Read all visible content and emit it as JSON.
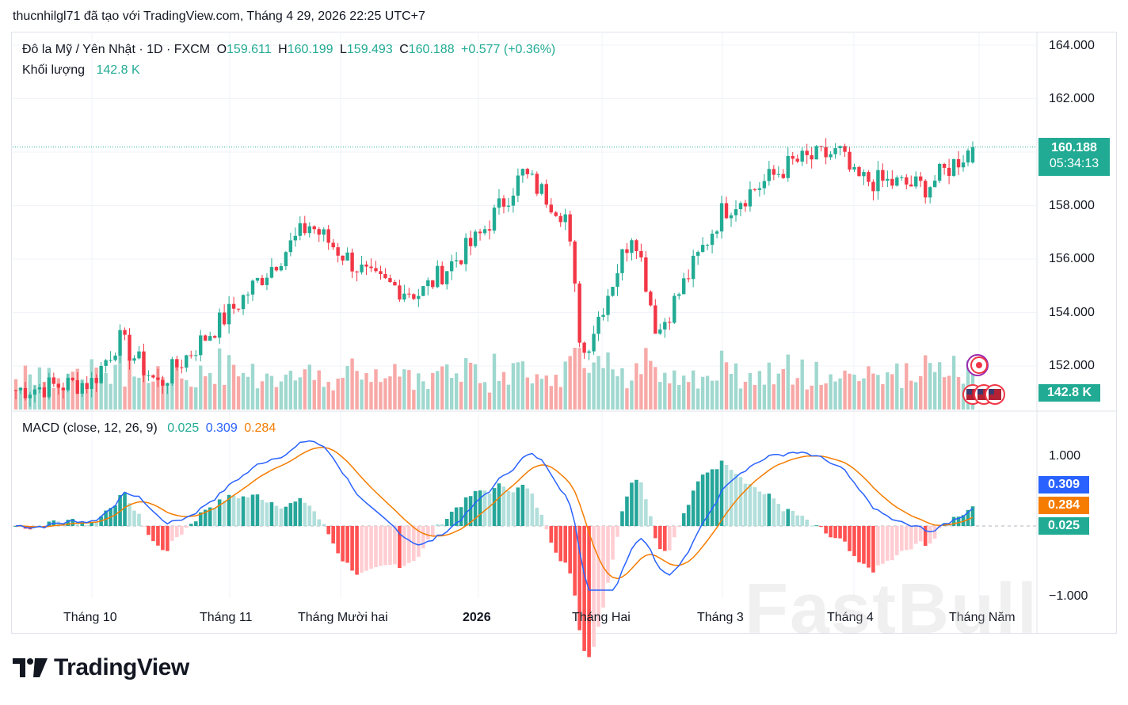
{
  "header": {
    "text": "thucnhilgl71 đã tạo với TradingView.com, Tháng 4 29, 2026 22:25 UTC+7"
  },
  "legend": {
    "symbol": "Đô la Mỹ / Yên Nhật · 1D · FXCM",
    "o_label": "O",
    "o_value": "159.611",
    "h_label": "H",
    "h_value": "160.199",
    "l_label": "L",
    "l_value": "159.493",
    "c_label": "C",
    "c_value": "160.188",
    "change": "+0.577 (+0.36%)",
    "volume_label": "Khối lượng",
    "volume_value": "142.8 K",
    "macd_label": "MACD (close, 12, 26, 9)",
    "macd_hist": "0.025",
    "macd_line": "0.309",
    "macd_signal": "0.284"
  },
  "price_axis": {
    "ticks": [
      "164.000",
      "162.000",
      "158.000",
      "156.000",
      "154.000",
      "152.000"
    ],
    "last_price": "160.188",
    "countdown": "05:34:13",
    "volume_tag": "142.8 K"
  },
  "macd_axis": {
    "ticks": [
      "1.000",
      "−1.000"
    ],
    "tag_macd": "0.309",
    "tag_signal": "0.284",
    "tag_hist": "0.025"
  },
  "time_axis": [
    "Tháng 10",
    "Tháng 11",
    "Tháng Mười hai",
    "2026",
    "Tháng Hai",
    "Tháng 3",
    "Tháng 4",
    "Tháng Năm"
  ],
  "brand": {
    "name": "TradingView"
  },
  "watermark": "FastBull",
  "colors": {
    "up": "#22ab94",
    "down": "#f23645",
    "vol_up": "#9fd8cf",
    "vol_down": "#f7a9a7",
    "macd": "#2962ff",
    "signal": "#f57c00"
  },
  "chart_data": {
    "type": "candlestick",
    "title": "Đô la Mỹ / Yên Nhật · 1D · FXCM",
    "ylim": [
      151.5,
      164.4
    ],
    "y_ticks": [
      152,
      154,
      156,
      158,
      162,
      164
    ],
    "series": [
      {
        "name": "close",
        "x_labels": [
          "Tháng 10",
          "Tháng 11",
          "Tháng Mười hai",
          "2026",
          "Tháng Hai",
          "Tháng 3",
          "Tháng 4",
          "Tháng Năm"
        ],
        "anchors": [
          {
            "label": "Tháng 10",
            "close": 152.3
          },
          {
            "label": "Tháng 11",
            "close": 154.0
          },
          {
            "label": "Tháng Mười hai",
            "close": 156.2
          },
          {
            "label": "2026",
            "close": 156.8
          },
          {
            "label": "Tháng Hai",
            "close": 154.3
          },
          {
            "label": "Tháng 3",
            "close": 157.8
          },
          {
            "label": "Tháng 4",
            "close": 159.0
          },
          {
            "label": "Tháng Năm",
            "close": 160.188
          }
        ]
      }
    ],
    "macd": {
      "fast": 12,
      "slow": 26,
      "signal": 9,
      "ylim": [
        -1.3,
        1.7
      ],
      "last_macd": 0.309,
      "last_signal": 0.284,
      "last_hist": 0.025
    },
    "volume_last": "142.8 K"
  }
}
